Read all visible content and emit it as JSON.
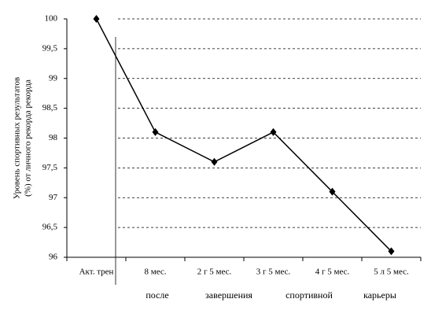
{
  "chart_data": {
    "type": "line",
    "y_label_lines": [
      "Уровень спортивных результатов",
      "(%) от личного рекорда рекорда"
    ],
    "x_label_words": [
      "после",
      "завершения",
      "спортивной",
      "карьеры"
    ],
    "categories": [
      "Акт. трен",
      "8 мес.",
      "2 г 5 мес.",
      "3 г 5 мес.",
      "4 г 5 мес.",
      "5 л 5 мес."
    ],
    "series": [
      {
        "color": "#000000",
        "values": [
          100,
          98.1,
          97.6,
          98.1,
          97.1,
          96.1
        ]
      }
    ],
    "ylim": [
      96,
      100
    ],
    "yticks": [
      96,
      {
        "value": 96.5,
        "label": "96,5"
      },
      97,
      {
        "value": 97.5,
        "label": "97,5"
      },
      98,
      {
        "value": 98.5,
        "label": "98,5"
      },
      99,
      {
        "value": 99.5,
        "label": "99,5"
      },
      100
    ],
    "grid": true
  }
}
